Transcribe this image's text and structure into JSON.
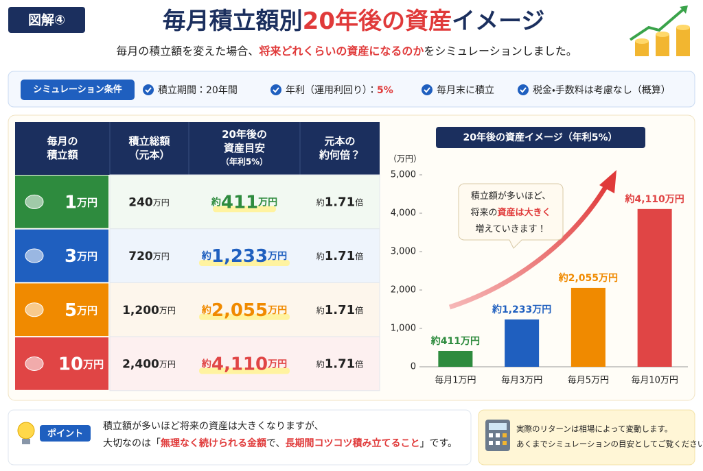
{
  "header": {
    "badge": "図解④",
    "title": [
      "毎月積立額別",
      "20年後の資産",
      "イメージ"
    ],
    "subtitle": [
      "毎月の積立額を変えた場合、",
      "将来どれくらいの資産になるのか",
      "をシミュレーションしました。"
    ]
  },
  "conditions": {
    "label": "シミュレーション条件",
    "items": [
      [
        "積立期間：20年間"
      ],
      [
        "年利（運用利回り）：",
        "5%"
      ],
      [
        "毎月末に積立"
      ],
      [
        "税金・手数料は考慮なし（概算）"
      ]
    ]
  },
  "table": {
    "headers": [
      [
        "毎月の",
        "積立額"
      ],
      [
        "積立総額",
        "（元本）"
      ],
      [
        "20年後の",
        "資産目安",
        "（年利5%）"
      ],
      [
        "元本の",
        "約何倍？"
      ]
    ],
    "rows": [
      [
        [
          "1",
          "万円"
        ],
        [
          "240",
          "万円"
        ],
        [
          "約",
          "411",
          "万円"
        ],
        [
          "約",
          "1.71",
          "倍"
        ]
      ],
      [
        [
          "3",
          "万円"
        ],
        [
          "720",
          "万円"
        ],
        [
          "約",
          "1,233",
          "万円"
        ],
        [
          "約",
          "1.71",
          "倍"
        ]
      ],
      [
        [
          "5",
          "万円"
        ],
        [
          "1,200",
          "万円"
        ],
        [
          "約",
          "2,055",
          "万円"
        ],
        [
          "約",
          "1.71",
          "倍"
        ]
      ],
      [
        [
          "10",
          "万円"
        ],
        [
          "2,400",
          "万円"
        ],
        [
          "約",
          "4,110",
          "万円"
        ],
        [
          "約",
          "1.71",
          "倍"
        ]
      ]
    ]
  },
  "chart_data": {
    "type": "bar",
    "title": "20年後の資産イメージ（年利5%）",
    "y_label": "（万円）",
    "categories": [
      "毎月1万円",
      "毎月3万円",
      "毎月5万円",
      "毎月10万円"
    ],
    "values": [
      411,
      1233,
      2055,
      4110
    ],
    "value_labels": [
      "約411万円",
      "約1,233万円",
      "約2,055万円",
      "約4,110万円"
    ],
    "colors": [
      "#2e8b3e",
      "#1f5fbf",
      "#f08a00",
      "#e04545"
    ],
    "ylim": [
      0,
      5000
    ],
    "yticks": [
      0,
      {
        "value": 1000,
        "label": "1,000"
      },
      {
        "value": 2000,
        "label": "2,000"
      },
      {
        "value": 3000,
        "label": "3,000"
      },
      {
        "value": 4000,
        "label": "4,000"
      },
      {
        "value": 5000,
        "label": "5,000"
      }
    ],
    "grid": false,
    "annotation": [
      [
        "積立額が多いほど、"
      ],
      [
        "将来の",
        "資産は大きく"
      ],
      [
        "増えていきます！"
      ]
    ]
  },
  "point": {
    "label": "ポイント",
    "lines": [
      [
        "積立額が多いほど将来の資産は大きくなりますが、"
      ],
      [
        "大切なのは「",
        "無理なく続けられる金額",
        "で、",
        "長期間コツコツ積み立てること",
        "」です。"
      ]
    ]
  },
  "note": {
    "lines": [
      "実際のリターンは相場によって変動します。",
      "あくまでシミュレーションの目安としてご覧ください。"
    ]
  }
}
